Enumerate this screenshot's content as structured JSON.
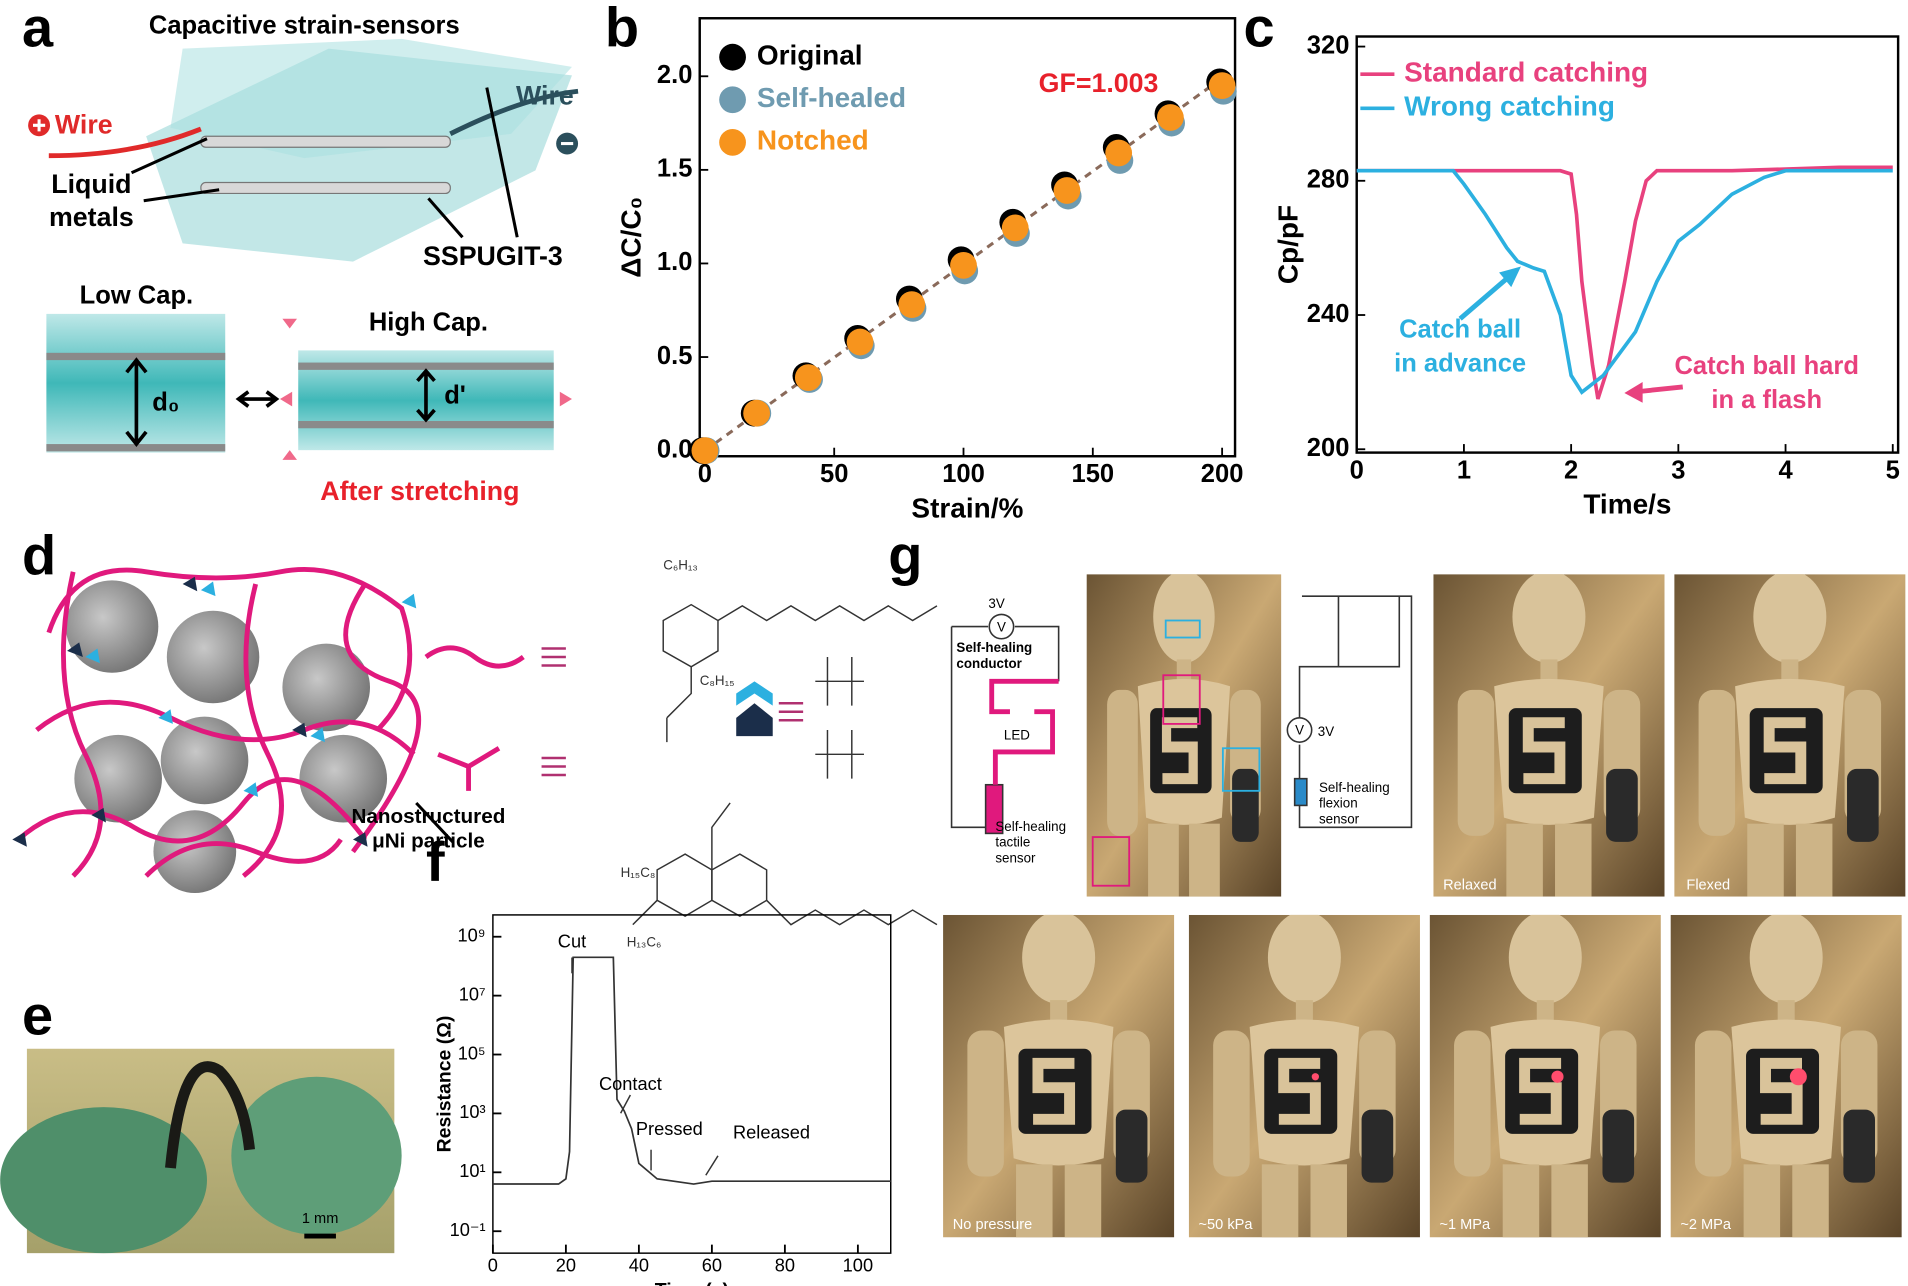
{
  "panel_labels": [
    "a",
    "b",
    "c",
    "d",
    "e",
    "f",
    "g"
  ],
  "panel_a": {
    "title": "Capacitive strain-sensors",
    "wire_left": "Wire",
    "wire_right": "Wire",
    "liquid_metals": [
      "Liquid",
      "metals"
    ],
    "material": "SSPUGIT-3",
    "low_cap": "Low Cap.",
    "high_cap": "High Cap.",
    "d0": "d₀",
    "d_prime": "d'",
    "after": "After stretching"
  },
  "panel_d": {
    "particle": [
      "Nanostructured",
      "μNi particle"
    ],
    "chem": [
      "C₆H₁₃",
      "C₈H₁₅",
      "H₁₅C₈",
      "H₁₃C₆"
    ]
  },
  "panel_e": {
    "scale": "1 mm"
  },
  "panel_g": {
    "v1": "3V",
    "voltmeter": "V",
    "conductor": [
      "Self-healing",
      "conductor"
    ],
    "led": "LED",
    "tactile": [
      "Self-healing",
      "tactile",
      "sensor"
    ],
    "v2": "3V",
    "flexion": [
      "Self-healing",
      "flexion",
      "sensor"
    ],
    "photos": [
      "Relaxed",
      "Flexed",
      "No pressure",
      "~50 kPa",
      "~1 MPa",
      "~2 MPa"
    ]
  },
  "chart_data": [
    {
      "type": "scatter",
      "xlabel": "Strain/%",
      "ylabel": "ΔC/C₀",
      "x": [
        0,
        20,
        40,
        60,
        80,
        100,
        120,
        140,
        160,
        180,
        200
      ],
      "series": [
        {
          "name": "Original",
          "color": "#000000",
          "values": [
            0,
            0.2,
            0.4,
            0.6,
            0.81,
            1.02,
            1.22,
            1.42,
            1.62,
            1.8,
            1.97
          ]
        },
        {
          "name": "Self-healed",
          "color": "#6f9bb0",
          "values": [
            0,
            0.2,
            0.38,
            0.56,
            0.76,
            0.96,
            1.16,
            1.36,
            1.55,
            1.75,
            1.92
          ]
        },
        {
          "name": "Notched",
          "color": "#f7941d",
          "values": [
            0,
            0.2,
            0.39,
            0.58,
            0.78,
            0.99,
            1.19,
            1.39,
            1.59,
            1.78,
            1.95
          ]
        }
      ],
      "fit": {
        "x": [
          0,
          200
        ],
        "values": [
          0,
          1.99
        ]
      },
      "annotations": [
        {
          "text": "GF=1.003",
          "color": "#e8212b"
        }
      ],
      "xlim": [
        -2,
        205
      ],
      "ylim": [
        -0.03,
        2.31
      ],
      "xticks": [
        0,
        50,
        100,
        150,
        200
      ],
      "yticks": [
        {
          "value": 0,
          "label": "0.0"
        },
        0.5,
        {
          "value": 1,
          "label": "1.0"
        },
        1.5,
        {
          "value": 2,
          "label": "2.0"
        }
      ]
    },
    {
      "type": "line",
      "xlabel": "Time/s",
      "ylabel": "Cp/pF",
      "series": [
        {
          "name": "Standard catching",
          "color": "#e8417e",
          "x": [
            0,
            1.9,
            2.0,
            2.05,
            2.1,
            2.2,
            2.25,
            2.35,
            2.5,
            2.6,
            2.7,
            2.8,
            3.5,
            4.5,
            5
          ],
          "values": [
            283,
            283,
            282,
            270,
            250,
            225,
            215,
            225,
            250,
            268,
            280,
            283,
            283,
            284,
            284
          ]
        },
        {
          "name": "Wrong catching",
          "color": "#2cb0e0",
          "x": [
            0,
            0.9,
            1.0,
            1.2,
            1.4,
            1.5,
            1.65,
            1.75,
            1.9,
            2.0,
            2.1,
            2.3,
            2.6,
            2.8,
            3.0,
            3.2,
            3.5,
            3.8,
            4.0,
            5
          ],
          "values": [
            283,
            283,
            279,
            270,
            260,
            256,
            254,
            253,
            240,
            222,
            217,
            222,
            235,
            250,
            262,
            267,
            276,
            281,
            283,
            283
          ]
        }
      ],
      "annotations": [
        {
          "text": [
            "Catch ball",
            "in advance"
          ],
          "color": "#2cb0e0"
        },
        {
          "text": [
            "Catch ball hard",
            "in a flash"
          ],
          "color": "#e8417e"
        }
      ],
      "xlim": [
        0,
        5.05
      ],
      "ylim": [
        199,
        323
      ],
      "xticks": [
        0,
        1,
        2,
        3,
        4,
        5
      ],
      "yticks": [
        200,
        240,
        280,
        320
      ]
    },
    {
      "type": "line",
      "log": true,
      "xlabel": "Time (s)",
      "ylabel": "Resistance (Ω)",
      "series": [
        {
          "color": "#333333",
          "x": [
            0,
            18,
            20,
            21,
            22,
            33,
            34,
            36,
            38,
            40,
            45,
            55,
            60,
            109
          ],
          "values": [
            4,
            4,
            6,
            50,
            200000000,
            200000000,
            3000,
            1200,
            300,
            20,
            6,
            4,
            5,
            5
          ]
        }
      ],
      "annotations": [
        "Cut",
        "Contact",
        "Pressed",
        "Released"
      ],
      "xlim": [
        0,
        109
      ],
      "ylim": [
        0.018,
        5500000000
      ],
      "xticks": [
        0,
        20,
        40,
        60,
        80,
        100
      ],
      "yticks": [
        {
          "value": 0.1,
          "label": "10⁻¹"
        },
        {
          "value": 10,
          "label": "10¹"
        },
        {
          "value": 1000,
          "label": "10³"
        },
        {
          "value": 100000,
          "label": "10⁵"
        },
        {
          "value": 10000000,
          "label": "10⁷"
        },
        {
          "value": 1000000000,
          "label": "10⁹"
        }
      ]
    }
  ]
}
